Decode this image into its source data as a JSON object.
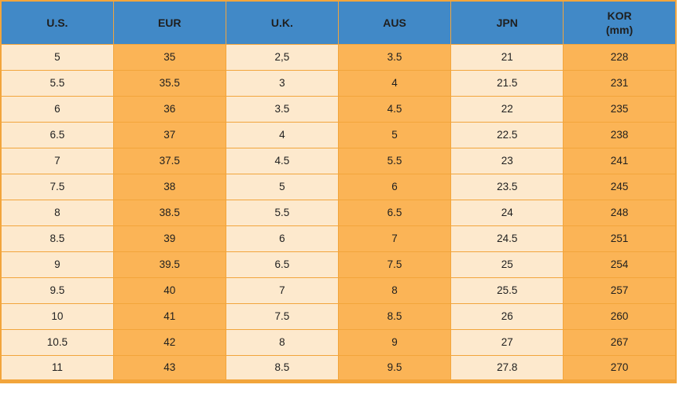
{
  "colors": {
    "header_bg": "#4189C7",
    "column_light": "#FDE9CD",
    "column_orange": "#FBB456",
    "grid": "#F2A53C",
    "text": "#1F1F1F",
    "page_bg": "#FFFFFF"
  },
  "chart_data": {
    "type": "table",
    "columns": [
      {
        "label": "U.S."
      },
      {
        "label": "EUR"
      },
      {
        "label": "U.K."
      },
      {
        "label": "AUS"
      },
      {
        "label": "JPN"
      },
      {
        "label": "KOR",
        "sublabel": "(mm)"
      }
    ],
    "rows": [
      [
        "5",
        "35",
        "2,5",
        "3.5",
        "21",
        "228"
      ],
      [
        "5.5",
        "35.5",
        "3",
        "4",
        "21.5",
        "231"
      ],
      [
        "6",
        "36",
        "3.5",
        "4.5",
        "22",
        "235"
      ],
      [
        "6.5",
        "37",
        "4",
        "5",
        "22.5",
        "238"
      ],
      [
        "7",
        "37.5",
        "4.5",
        "5.5",
        "23",
        "241"
      ],
      [
        "7.5",
        "38",
        "5",
        "6",
        "23.5",
        "245"
      ],
      [
        "8",
        "38.5",
        "5.5",
        "6.5",
        "24",
        "248"
      ],
      [
        "8.5",
        "39",
        "6",
        "7",
        "24.5",
        "251"
      ],
      [
        "9",
        "39.5",
        "6.5",
        "7.5",
        "25",
        "254"
      ],
      [
        "9.5",
        "40",
        "7",
        "8",
        "25.5",
        "257"
      ],
      [
        "10",
        "41",
        "7.5",
        "8.5",
        "26",
        "260"
      ],
      [
        "10.5",
        "42",
        "8",
        "9",
        "27",
        "267"
      ],
      [
        "11",
        "43",
        "8.5",
        "9.5",
        "27.8",
        "270"
      ]
    ]
  }
}
